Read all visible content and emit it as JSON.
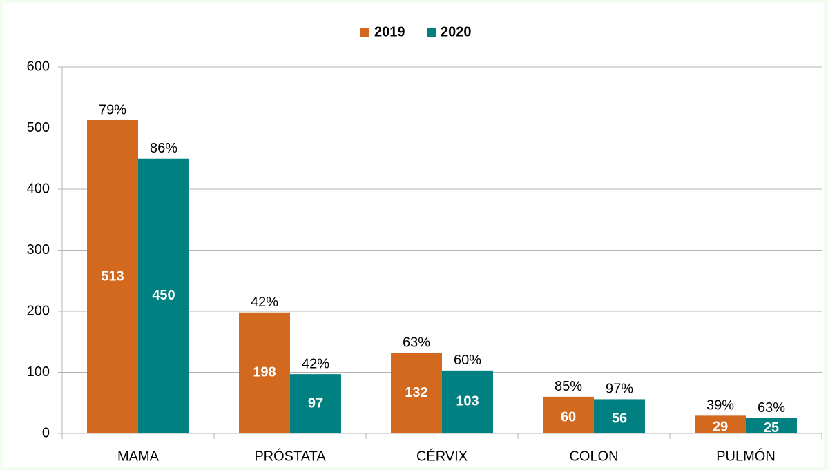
{
  "chart_data": {
    "type": "bar",
    "categories": [
      "MAMA",
      "PRÓSTATA",
      "CÉRVIX",
      "COLON",
      "PULMÓN"
    ],
    "series": [
      {
        "name": "2019",
        "color": "#d2691e",
        "values": [
          513,
          198,
          132,
          60,
          29
        ],
        "annotations": [
          "79%",
          "42%",
          "63%",
          "85%",
          "39%"
        ]
      },
      {
        "name": "2020",
        "color": "#008080",
        "values": [
          450,
          97,
          103,
          56,
          25
        ],
        "annotations": [
          "86%",
          "42%",
          "60%",
          "97%",
          "63%"
        ]
      }
    ],
    "ylim": [
      0,
      600
    ],
    "yticks": [
      0,
      100,
      200,
      300,
      400,
      500,
      600
    ],
    "grid": true,
    "legend": "top"
  }
}
